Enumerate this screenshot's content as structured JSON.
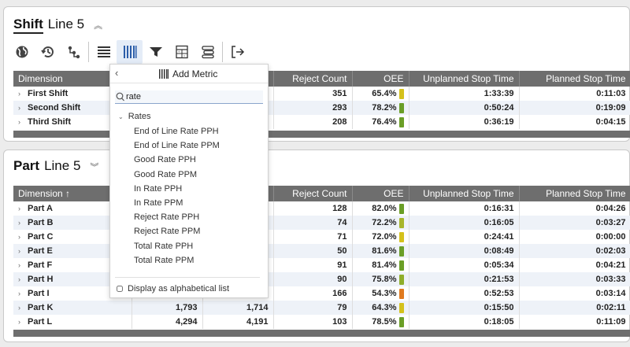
{
  "shift_panel": {
    "title_main": "Shift",
    "title_sub": "Line 5",
    "columns": [
      "Dimension",
      "",
      "",
      "Reject Count",
      "OEE",
      "Unplanned Stop Time",
      "Planned Stop Time"
    ],
    "rows": [
      {
        "name": "First Shift",
        "c1": "",
        "c2": "",
        "reject": "351",
        "oee": "65.4%",
        "oee_color": "#d4c11b",
        "unplanned": "1:33:39",
        "planned": "0:11:03"
      },
      {
        "name": "Second Shift",
        "c1": "",
        "c2": "",
        "reject": "293",
        "oee": "78.2%",
        "oee_color": "#6a9e26",
        "unplanned": "0:50:24",
        "planned": "0:19:09"
      },
      {
        "name": "Third Shift",
        "c1": "",
        "c2": "",
        "reject": "208",
        "oee": "76.4%",
        "oee_color": "#6a9e26",
        "unplanned": "0:36:19",
        "planned": "0:04:15"
      }
    ]
  },
  "part_panel": {
    "title_main": "Part",
    "title_sub": "Line 5",
    "columns": [
      "Dimension ↑",
      "",
      "",
      "Reject Count",
      "OEE",
      "Unplanned Stop Time",
      "Planned Stop Time"
    ],
    "rows": [
      {
        "name": "Part A",
        "c1": "",
        "c2": "",
        "reject": "128",
        "oee": "82.0%",
        "oee_color": "#6a9e26",
        "unplanned": "0:16:31",
        "planned": "0:04:26"
      },
      {
        "name": "Part B",
        "c1": "",
        "c2": "",
        "reject": "74",
        "oee": "72.2%",
        "oee_color": "#a7b52a",
        "unplanned": "0:16:05",
        "planned": "0:03:27"
      },
      {
        "name": "Part C",
        "c1": "",
        "c2": "",
        "reject": "71",
        "oee": "72.0%",
        "oee_color": "#d4c11b",
        "unplanned": "0:24:41",
        "planned": "0:00:00"
      },
      {
        "name": "Part E",
        "c1": "",
        "c2": "",
        "reject": "50",
        "oee": "81.6%",
        "oee_color": "#6a9e26",
        "unplanned": "0:08:49",
        "planned": "0:02:03"
      },
      {
        "name": "Part F",
        "c1": "",
        "c2": "",
        "reject": "91",
        "oee": "81.4%",
        "oee_color": "#6a9e26",
        "unplanned": "0:05:34",
        "planned": "0:04:21"
      },
      {
        "name": "Part H",
        "c1": "",
        "c2": "",
        "reject": "90",
        "oee": "75.8%",
        "oee_color": "#8fae2a",
        "unplanned": "0:21:53",
        "planned": "0:03:33"
      },
      {
        "name": "Part I",
        "c1": "",
        "c2": "",
        "reject": "166",
        "oee": "54.3%",
        "oee_color": "#e07a1e",
        "unplanned": "0:52:53",
        "planned": "0:03:14"
      },
      {
        "name": "Part K",
        "c1": "1,793",
        "c2": "1,714",
        "reject": "79",
        "oee": "64.3%",
        "oee_color": "#d4c11b",
        "unplanned": "0:15:50",
        "planned": "0:02:11"
      },
      {
        "name": "Part L",
        "c1": "4,294",
        "c2": "4,191",
        "reject": "103",
        "oee": "78.5%",
        "oee_color": "#6a9e26",
        "unplanned": "0:18:05",
        "planned": "0:11:09"
      }
    ]
  },
  "popup": {
    "title": "Add Metric",
    "search_value": "rate",
    "group": "Rates",
    "items": [
      "End of Line Rate PPH",
      "End of Line Rate PPM",
      "Good Rate PPH",
      "Good Rate PPM",
      "In Rate PPH",
      "In Rate PPM",
      "Reject Rate PPH",
      "Reject Rate PPM",
      "Total Rate PPH",
      "Total Rate PPM"
    ],
    "alpha_label": "Display as alphabetical list"
  },
  "toolbar_icons": [
    "globe-icon",
    "history-icon",
    "hierarchy-icon",
    "rows-icon",
    "columns-icon",
    "filter-icon",
    "calculator-icon",
    "group-icon",
    "export-icon"
  ]
}
